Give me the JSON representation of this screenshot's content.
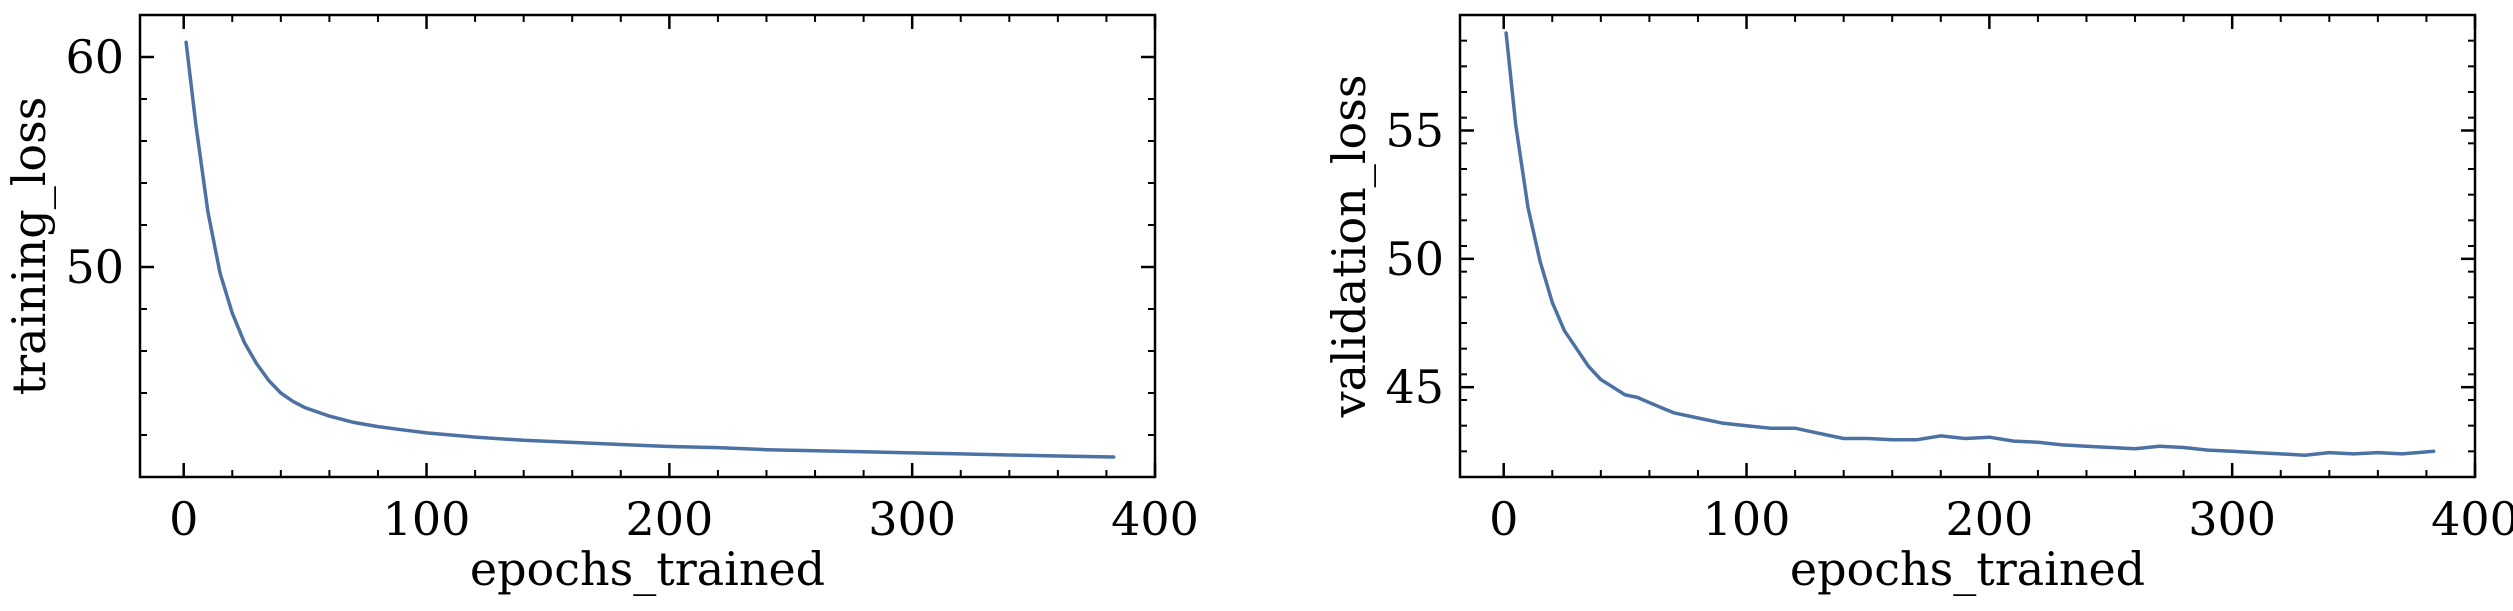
{
  "chart_data": [
    {
      "type": "line",
      "xlabel": "epochs_trained",
      "ylabel": "training_loss",
      "xlim": [
        -18,
        400
      ],
      "ylim": [
        40,
        62
      ],
      "xticks": [
        0,
        100,
        200,
        300,
        400
      ],
      "yticks": [
        50,
        60
      ],
      "grid": false,
      "series": [
        {
          "color": "#4c72a4",
          "x": [
            1,
            5,
            10,
            15,
            20,
            25,
            30,
            35,
            40,
            45,
            50,
            60,
            70,
            80,
            90,
            100,
            120,
            140,
            160,
            180,
            200,
            220,
            240,
            260,
            280,
            300,
            320,
            340,
            360,
            383
          ],
          "y": [
            60.7,
            56.8,
            52.6,
            49.7,
            47.8,
            46.4,
            45.4,
            44.6,
            44.0,
            43.6,
            43.3,
            42.9,
            42.6,
            42.4,
            42.25,
            42.1,
            41.9,
            41.75,
            41.65,
            41.55,
            41.45,
            41.4,
            41.3,
            41.25,
            41.2,
            41.15,
            41.1,
            41.05,
            41.0,
            40.95
          ]
        }
      ]
    },
    {
      "type": "line",
      "xlabel": "epochs_trained",
      "ylabel": "validation_loss",
      "xlim": [
        -18,
        400
      ],
      "ylim": [
        41.5,
        59.5
      ],
      "xticks": [
        0,
        100,
        200,
        300,
        400
      ],
      "yticks": [
        45,
        50,
        55
      ],
      "grid": false,
      "series": [
        {
          "color": "#4c72a4",
          "x": [
            1,
            5,
            10,
            15,
            20,
            25,
            30,
            35,
            40,
            45,
            50,
            55,
            60,
            65,
            70,
            80,
            90,
            100,
            110,
            120,
            130,
            140,
            150,
            160,
            170,
            180,
            190,
            200,
            210,
            220,
            230,
            240,
            250,
            260,
            270,
            280,
            290,
            300,
            310,
            320,
            330,
            340,
            350,
            360,
            370,
            383
          ],
          "y": [
            58.8,
            55.2,
            52.0,
            49.9,
            48.3,
            47.2,
            46.5,
            45.8,
            45.3,
            45.0,
            44.7,
            44.6,
            44.4,
            44.2,
            44.0,
            43.8,
            43.6,
            43.5,
            43.4,
            43.4,
            43.2,
            43.0,
            43.0,
            42.95,
            42.95,
            43.1,
            43.0,
            43.05,
            42.9,
            42.85,
            42.75,
            42.7,
            42.65,
            42.6,
            42.7,
            42.65,
            42.55,
            42.5,
            42.45,
            42.4,
            42.35,
            42.45,
            42.4,
            42.45,
            42.4,
            42.5
          ]
        }
      ]
    }
  ]
}
